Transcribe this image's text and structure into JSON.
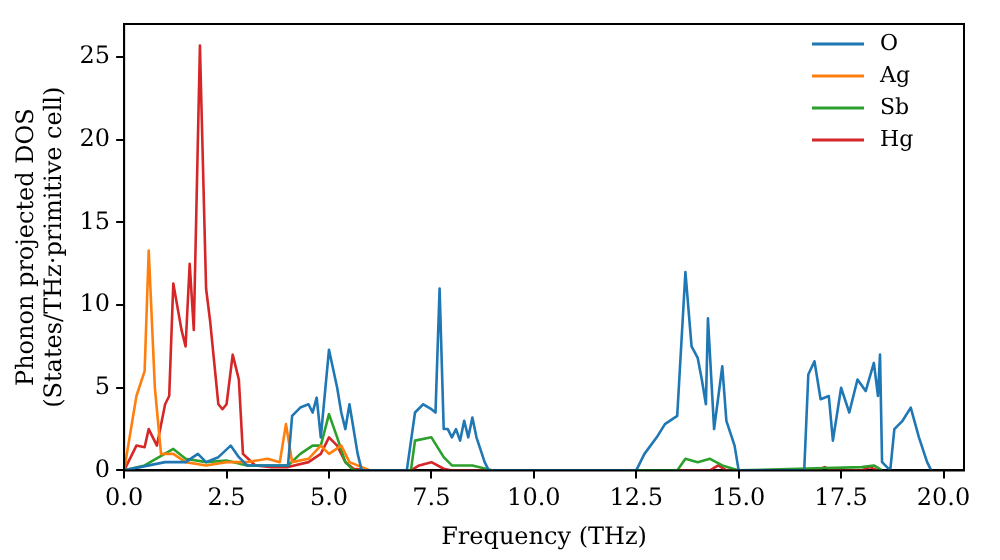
{
  "chart_data": {
    "type": "line",
    "xlabel": "Frequency (THz)",
    "ylabel": "Phonon projected DOS\n(States/THz·primitive cell)",
    "xlim": [
      0,
      20.5
    ],
    "ylim": [
      0,
      27
    ],
    "xticks": [
      {
        "value": 0,
        "label": "0.0"
      },
      {
        "value": 2.5,
        "label": "2.5"
      },
      {
        "value": 5,
        "label": "5.0"
      },
      {
        "value": 7.5,
        "label": "7.5"
      },
      {
        "value": 10,
        "label": "10.0"
      },
      {
        "value": 12.5,
        "label": "12.5"
      },
      {
        "value": 15,
        "label": "15.0"
      },
      {
        "value": 17.5,
        "label": "17.5"
      },
      {
        "value": 20,
        "label": "20.0"
      }
    ],
    "yticks": [
      0,
      5,
      10,
      15,
      20,
      25
    ],
    "grid": false,
    "legend": "top right",
    "marker": "none",
    "line_style": "solid",
    "series": [
      {
        "name": "O",
        "color": "#1f77b4",
        "x": [
          0,
          1,
          1.5,
          1.8,
          2,
          2.3,
          2.6,
          2.8,
          3,
          4,
          4.1,
          4.3,
          4.5,
          4.6,
          4.7,
          4.8,
          5,
          5.2,
          5.3,
          5.4,
          5.5,
          5.7,
          5.8,
          6.9,
          7.1,
          7.3,
          7.5,
          7.6,
          7.7,
          7.8,
          7.9,
          8,
          8.1,
          8.2,
          8.3,
          8.4,
          8.5,
          8.6,
          8.8,
          8.9,
          12.5,
          12.7,
          13,
          13.2,
          13.5,
          13.7,
          13.85,
          14,
          14.1,
          14.2,
          14.25,
          14.4,
          14.6,
          14.7,
          14.9,
          15,
          16.6,
          16.7,
          16.85,
          17,
          17.2,
          17.3,
          17.5,
          17.7,
          17.9,
          18.1,
          18.3,
          18.4,
          18.45,
          18.5,
          18.7,
          18.8,
          19,
          19.2,
          19.4,
          19.6,
          19.7
        ],
        "values": [
          0,
          0.5,
          0.5,
          1,
          0.5,
          0.8,
          1.5,
          0.8,
          0.3,
          0.3,
          3.3,
          3.8,
          4,
          3.5,
          4.4,
          2,
          7.3,
          5,
          3.5,
          2.5,
          4,
          1,
          0,
          0,
          3.5,
          4,
          3.7,
          3.5,
          11,
          2.5,
          2.5,
          2,
          2.5,
          1.8,
          3,
          2,
          3.2,
          2,
          0.5,
          0,
          0,
          1,
          2,
          2.8,
          3.3,
          12,
          7.5,
          6.8,
          5.5,
          4,
          9.2,
          2.5,
          6.3,
          3,
          1.5,
          0,
          0,
          5.8,
          6.6,
          4.3,
          4.5,
          1.8,
          5,
          3.5,
          5.5,
          4.8,
          6.5,
          4.5,
          7,
          0.5,
          0,
          2.5,
          3,
          3.8,
          2,
          0.5,
          0
        ]
      },
      {
        "name": "Ag",
        "color": "#ff7f0e",
        "x": [
          0,
          0.2,
          0.3,
          0.5,
          0.6,
          0.75,
          0.9,
          1.2,
          1.5,
          2,
          2.5,
          3,
          3.5,
          3.8,
          3.95,
          4.1,
          4.5,
          4.8,
          5,
          5.3,
          5.5,
          6
        ],
        "values": [
          0,
          3,
          4.5,
          6,
          13.3,
          5,
          1,
          1,
          0.5,
          0.3,
          0.5,
          0.5,
          0.7,
          0.5,
          2.8,
          0.5,
          0.7,
          1.5,
          1,
          1.5,
          0.5,
          0
        ]
      },
      {
        "name": "Sb",
        "color": "#2ca02c",
        "x": [
          0,
          0.5,
          1.2,
          1.5,
          2,
          2.5,
          3,
          4,
          4.3,
          4.6,
          4.8,
          5,
          5.2,
          5.4,
          5.6,
          7,
          7.1,
          7.5,
          7.8,
          8,
          8.5,
          9,
          13.5,
          13.7,
          14,
          14.3,
          14.6,
          15,
          18,
          18.3,
          18.5
        ],
        "values": [
          0,
          0.3,
          1.3,
          0.7,
          0.5,
          0.6,
          0.3,
          0.3,
          1,
          1.5,
          1.5,
          3.4,
          2,
          0.5,
          0,
          0,
          1.8,
          2,
          0.8,
          0.3,
          0.3,
          0,
          0,
          0.7,
          0.5,
          0.7,
          0.3,
          0,
          0.2,
          0.3,
          0
        ]
      },
      {
        "name": "Hg",
        "color": "#d62728",
        "x": [
          0,
          0.3,
          0.5,
          0.6,
          0.8,
          1,
          1.1,
          1.2,
          1.4,
          1.5,
          1.6,
          1.7,
          1.85,
          2,
          2.1,
          2.3,
          2.4,
          2.5,
          2.65,
          2.8,
          2.9,
          3.2,
          3.6,
          4,
          4.5,
          4.8,
          5,
          5.2,
          5.4,
          5.6,
          6,
          7,
          7.2,
          7.5,
          7.8,
          8,
          14.3,
          14.5,
          14.7,
          16.9,
          17.1,
          17.3,
          18,
          18.2,
          18.4
        ],
        "values": [
          0,
          1.5,
          1.4,
          2.5,
          1.5,
          4,
          4.5,
          11.3,
          8.5,
          7.5,
          12.5,
          8.5,
          25.7,
          11,
          9,
          4,
          3.7,
          4,
          7,
          5.5,
          1,
          0.3,
          0.2,
          0.2,
          0.5,
          1,
          2,
          1.5,
          0.5,
          0.1,
          0,
          0,
          0.3,
          0.5,
          0.1,
          0,
          0,
          0.3,
          0,
          0,
          0.2,
          0,
          0,
          0.2,
          0
        ]
      }
    ]
  }
}
